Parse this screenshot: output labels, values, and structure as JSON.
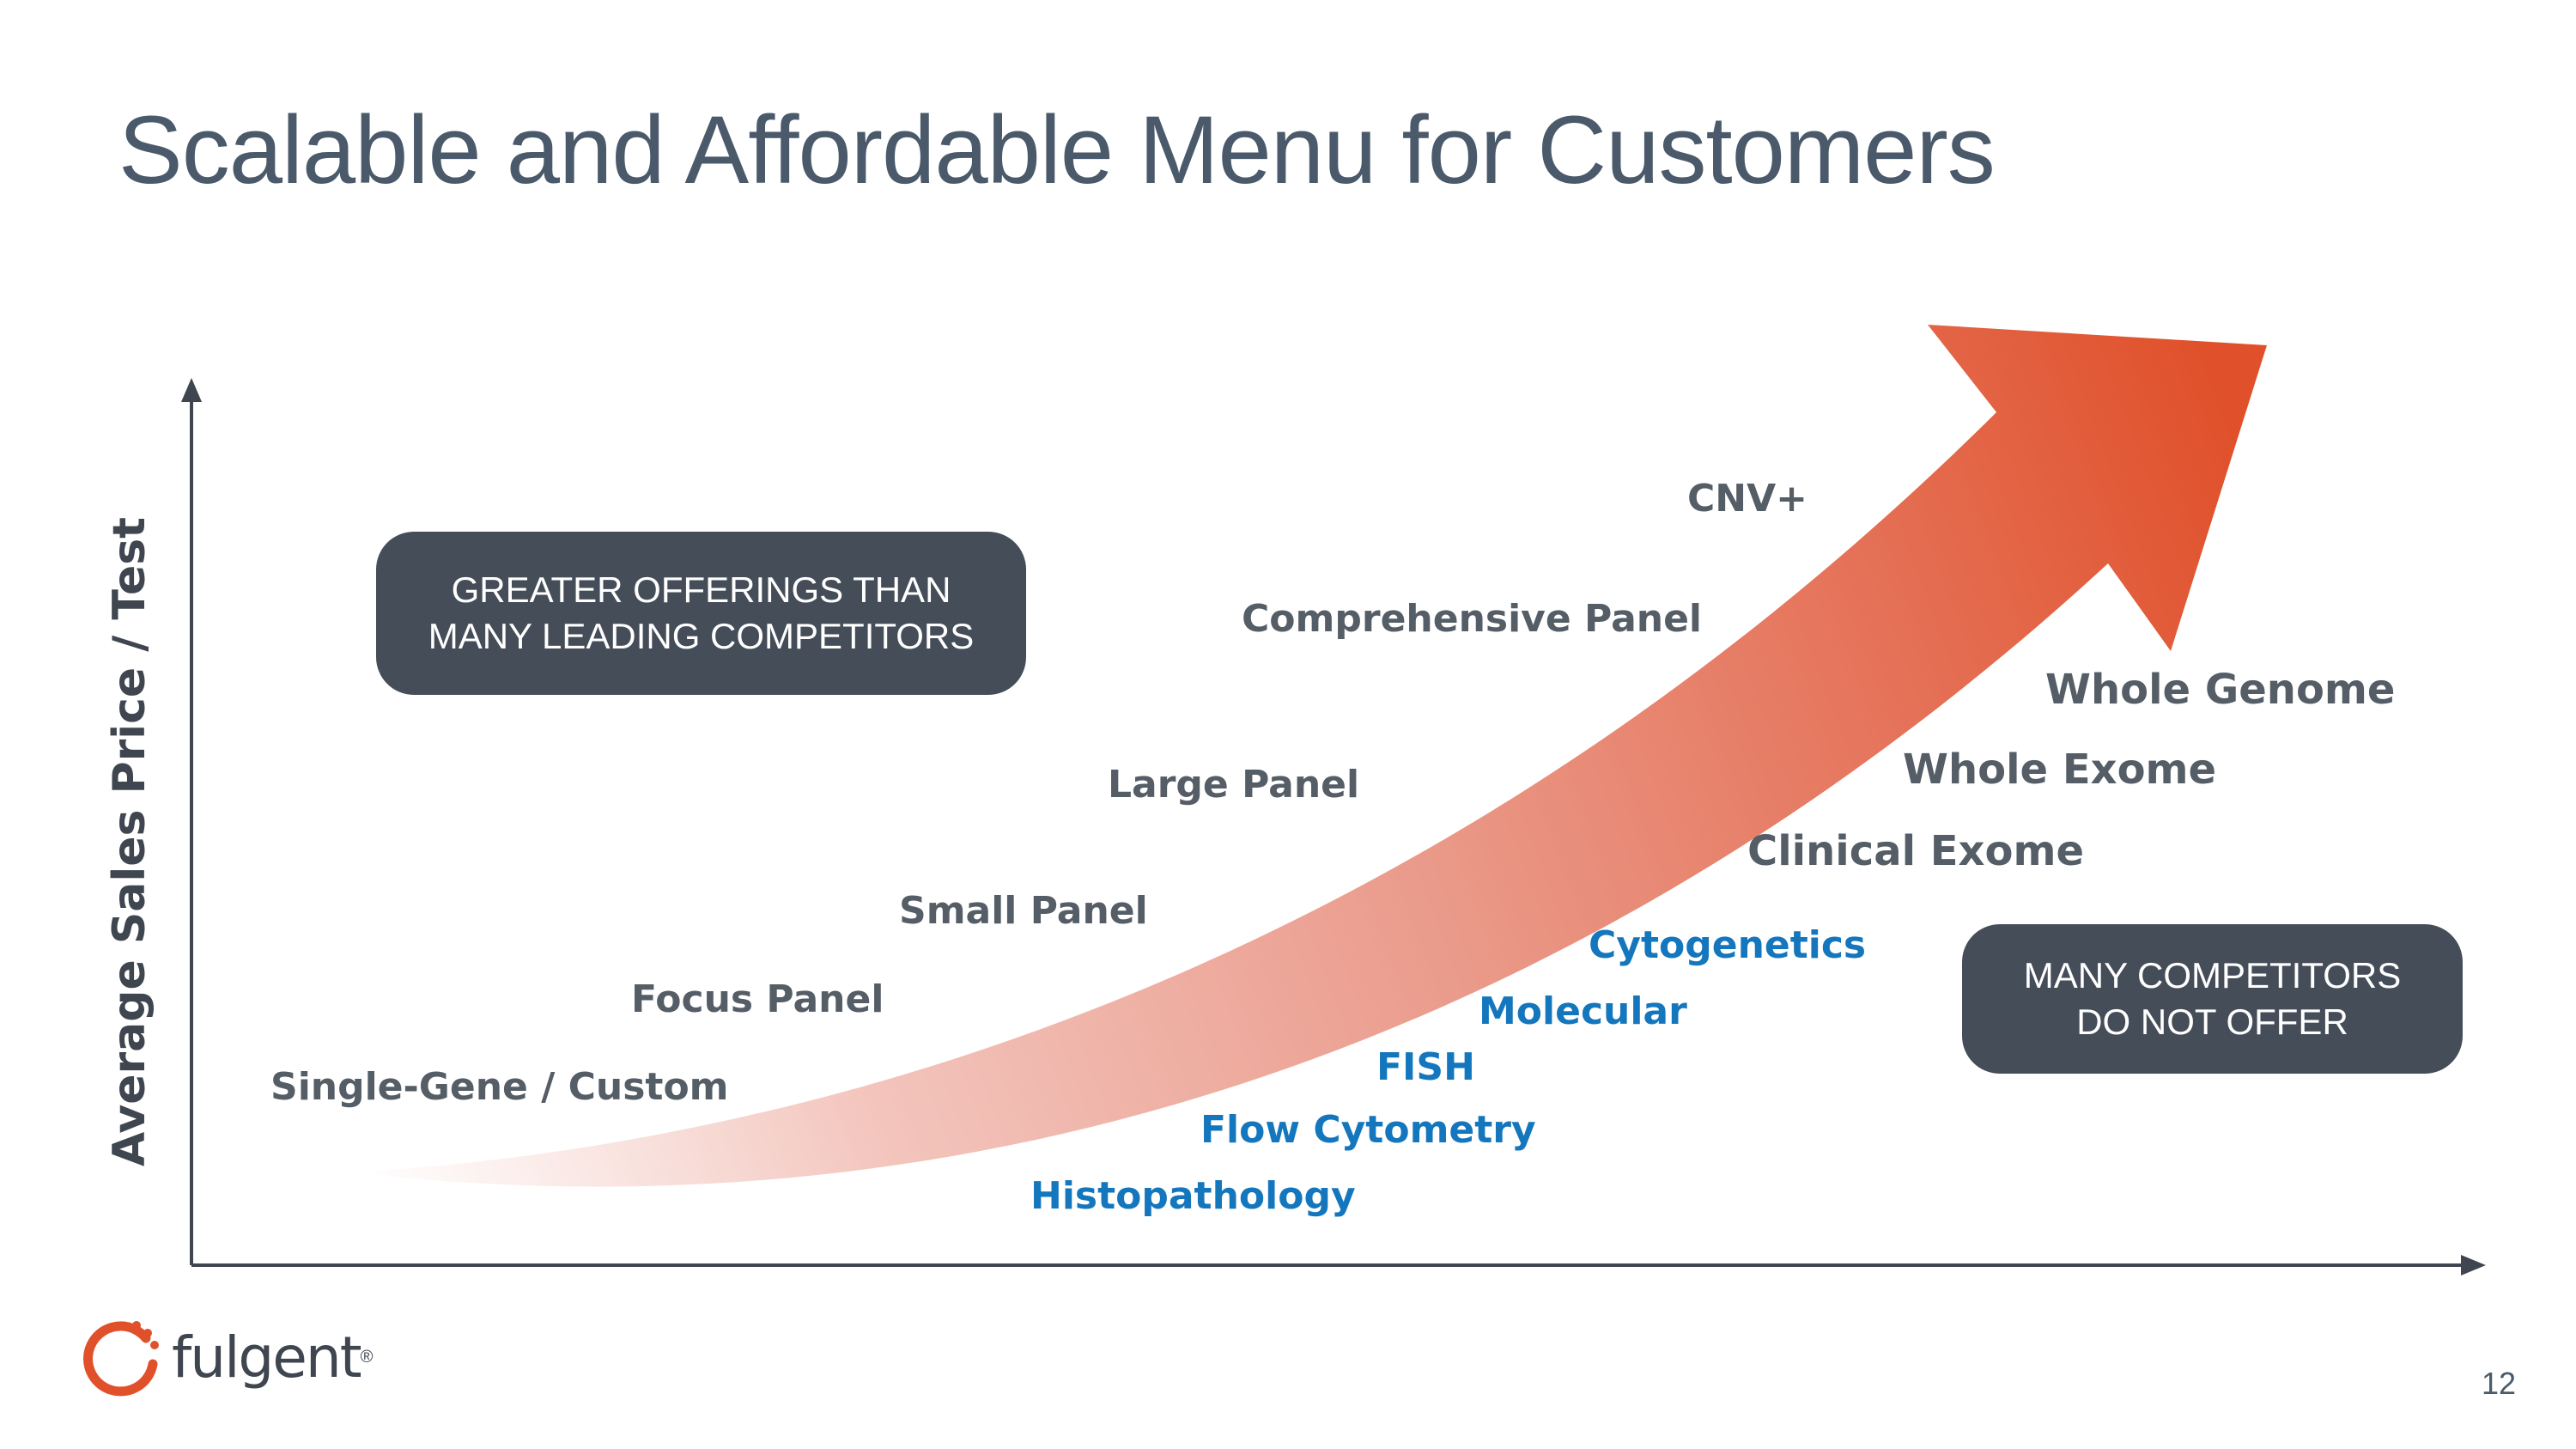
{
  "slide": {
    "title": "Scalable and Affordable Menu for Customers",
    "page_number": "12"
  },
  "diagram": {
    "y_axis_label": "Average Sales Price / Test",
    "callout_left": {
      "line1": "GREATER OFFERINGS THAN",
      "line2": "MANY LEADING COMPETITORS"
    },
    "callout_right": {
      "line1": "MANY COMPETITORS",
      "line2": "DO NOT OFFER"
    },
    "upper_items": [
      "Single-Gene / Custom",
      "Focus Panel",
      "Small Panel",
      "Large Panel",
      "Comprehensive Panel",
      "CNV+"
    ],
    "lower_items": [
      "Histopathology",
      "Flow Cytometry",
      "FISH",
      "Molecular",
      "Cytogenetics"
    ],
    "right_items": [
      "Clinical Exome",
      "Whole Exome",
      "Whole Genome"
    ],
    "colors": {
      "arrow_start": "#fbe9e6",
      "arrow_end": "#e2502b",
      "gray_text": "#555d66",
      "blue_text": "#1477bd",
      "callout_bg": "#454d59"
    }
  },
  "logo": {
    "text": "fulgent",
    "mark": "®"
  }
}
